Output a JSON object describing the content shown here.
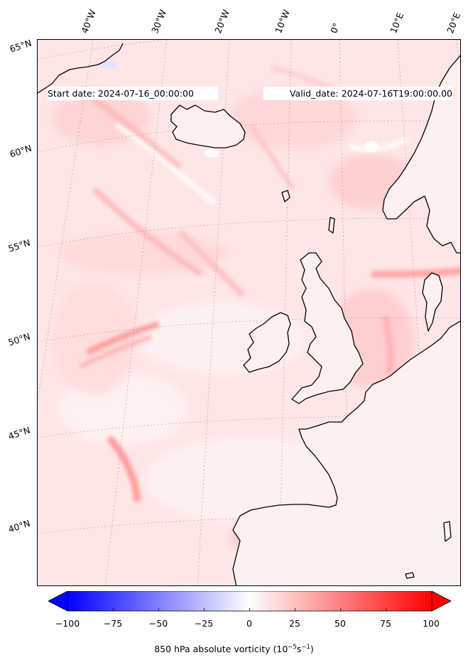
{
  "map": {
    "start_date_text": "Start date: 2024-07-16_00:00:00",
    "valid_date_text": "Valid_date: 2024-07-16T19:00:00.00",
    "longitude_labels": [
      "40°W",
      "30°W",
      "20°W",
      "10°W",
      "0°",
      "10°E",
      "20°E"
    ],
    "latitude_labels": [
      "65°N",
      "60°N",
      "55°N",
      "50°N",
      "45°N",
      "40°N"
    ],
    "field_variable": "850 hPa absolute vorticity",
    "projection": "conic",
    "region": "North Atlantic and Western Europe",
    "coastline_color": "#000000",
    "gridline_color": "#9a9a9a"
  },
  "colorbar": {
    "min": -100,
    "max": 100,
    "ticks": [
      "−100",
      "−75",
      "−50",
      "−25",
      "0",
      "25",
      "50",
      "75",
      "100"
    ],
    "colormap": "bwr",
    "low_color": "#0000ff",
    "mid_color": "#ffffff",
    "high_color": "#ff0000",
    "extend": "both",
    "label_main": "850 hPa absolute vorticity (10",
    "label_exp1": "−5",
    "label_unit": "s",
    "label_exp2": "−1",
    "label_close": ")"
  }
}
